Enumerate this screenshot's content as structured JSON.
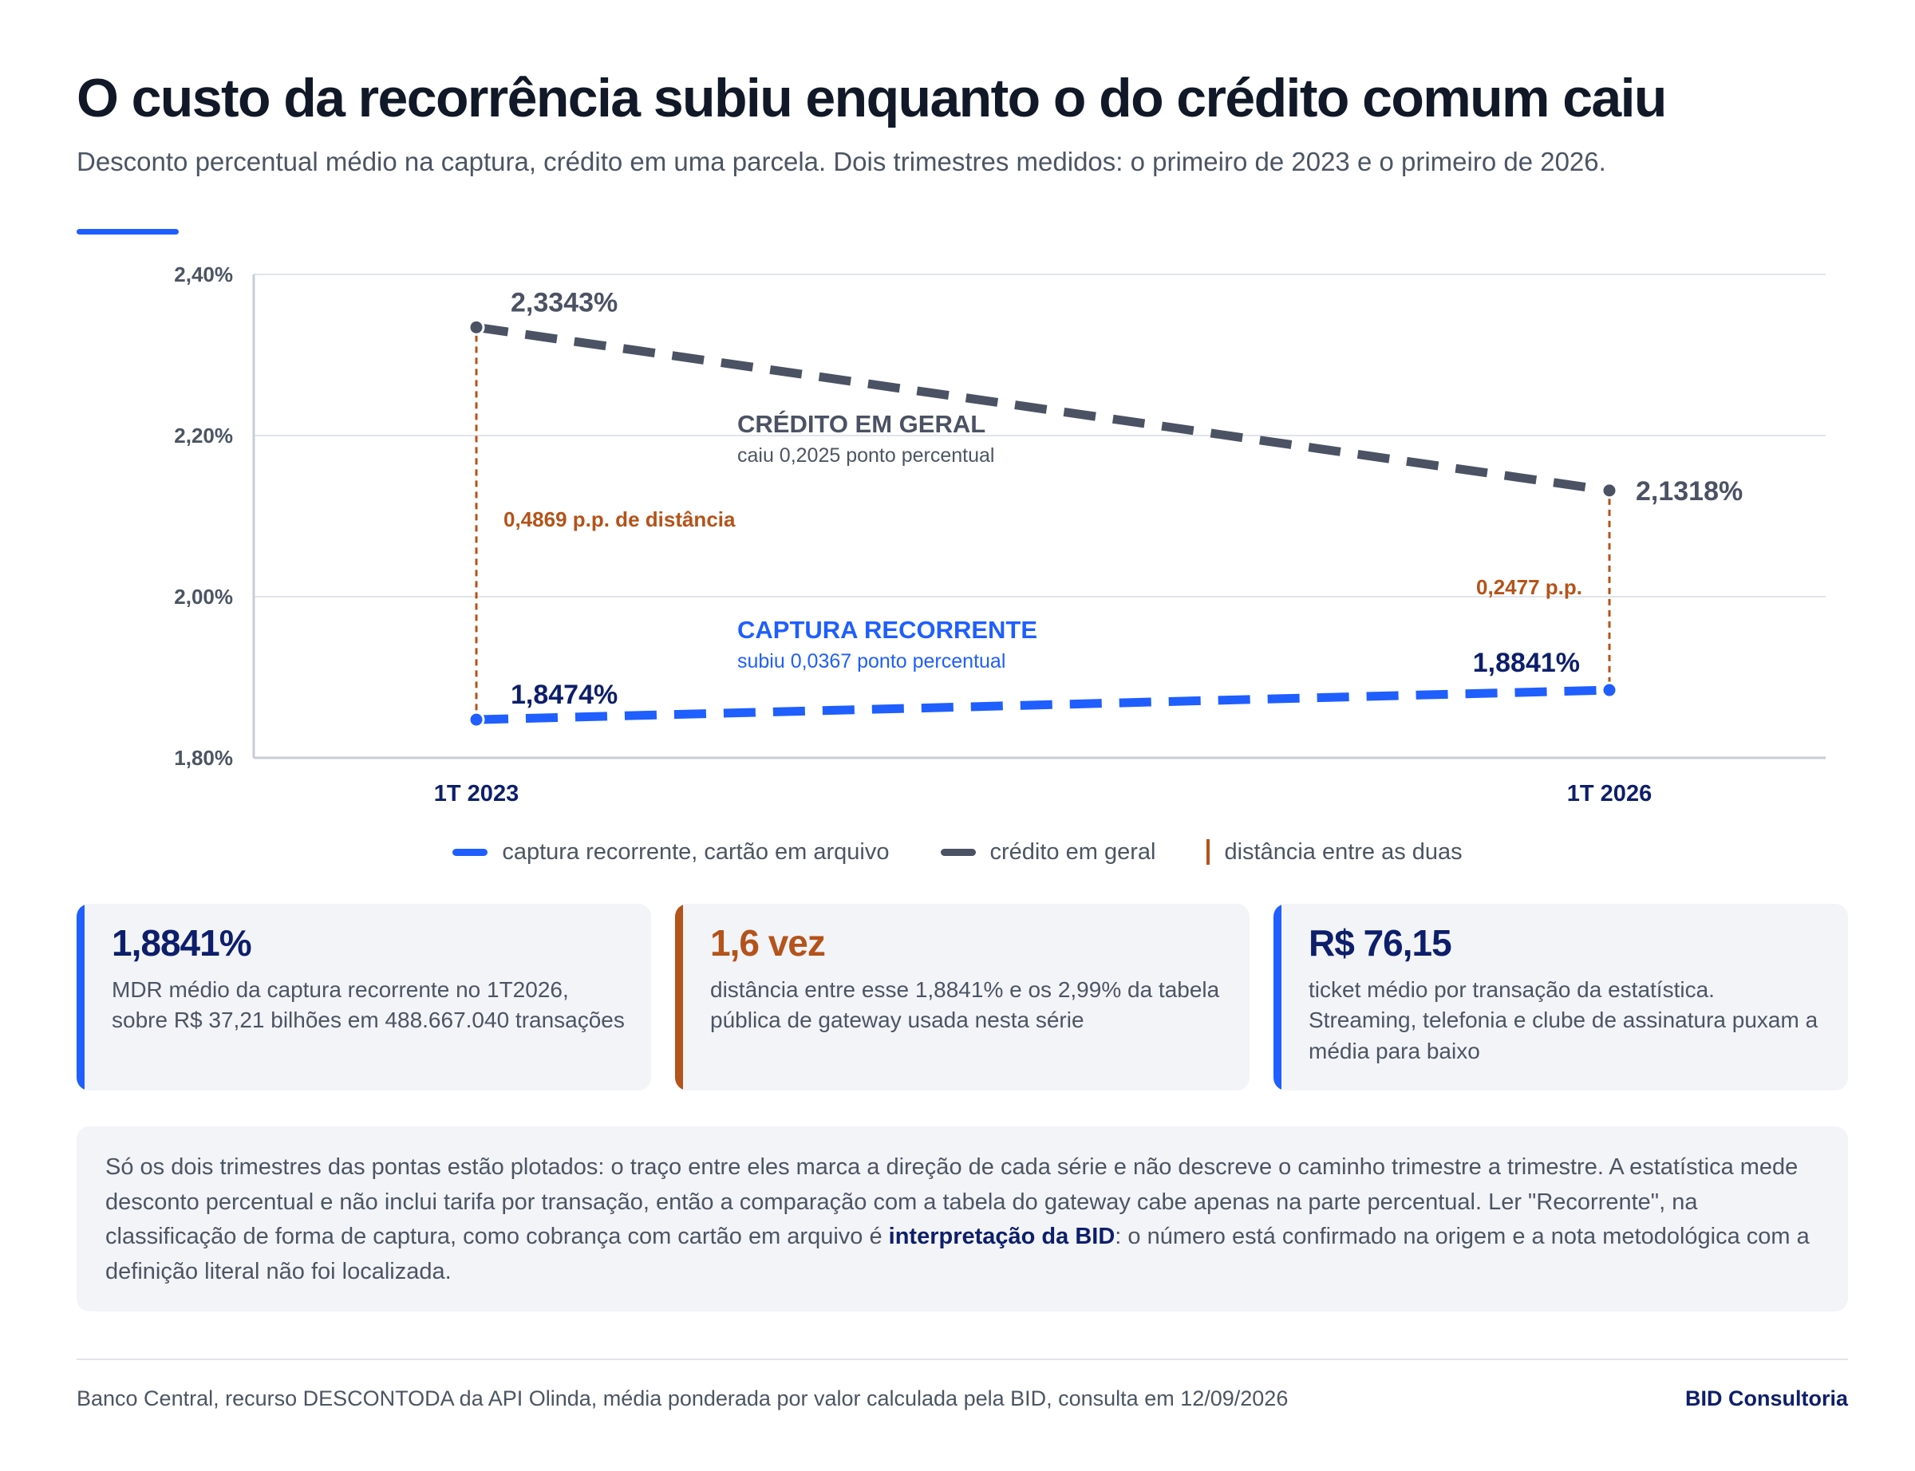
{
  "header": {
    "title": "O custo da recorrência subiu enquanto o do crédito comum caiu",
    "subtitle": "Desconto percentual médio na captura, crédito em uma parcela. Dois trimestres medidos: o primeiro de 2023 e o primeiro de 2026."
  },
  "colors": {
    "accent": "#1f5eff",
    "recurring": "#1f5eff",
    "credit": "#4b5264",
    "gap": "#b4531a",
    "navy": "#0d1f6b"
  },
  "chart_data": {
    "type": "line",
    "categories": [
      "1T 2023",
      "1T 2026"
    ],
    "ylim": [
      1.8,
      2.4
    ],
    "yticks": [
      {
        "value": 1.8,
        "label": "1,80%"
      },
      {
        "value": 2.0,
        "label": "2,00%"
      },
      {
        "value": 2.2,
        "label": "2,20%"
      },
      {
        "value": 2.4,
        "label": "2,40%"
      }
    ],
    "grid": true,
    "legend_position": "bottom",
    "series": [
      {
        "key": "credit",
        "values": [
          2.3343,
          2.1318
        ],
        "labels": [
          "2,3343%",
          "2,1318%"
        ],
        "annotation_title": "CRÉDITO EM GERAL",
        "annotation_sub": "caiu 0,2025 ponto percentual",
        "style": "dashed",
        "color": "#4b5264"
      },
      {
        "key": "recurring",
        "values": [
          1.8474,
          1.8841
        ],
        "labels": [
          "1,8474%",
          "1,8841%"
        ],
        "annotation_title": "CAPTURA RECORRENTE",
        "annotation_sub": "subiu 0,0367 ponto percentual",
        "style": "dashed",
        "color": "#1f5eff"
      }
    ],
    "gaps": [
      {
        "category": "1T 2023",
        "value": 0.4869,
        "label": "0,4869 p.p. de distância"
      },
      {
        "category": "1T 2026",
        "value": 0.2477,
        "label": "0,2477 p.p."
      }
    ]
  },
  "legend": {
    "recurring": "captura recorrente, cartão em arquivo",
    "credit": "crédito em geral",
    "gap": "distância entre as duas"
  },
  "cards": [
    {
      "value": "1,8841%",
      "text": "MDR médio da captura recorrente no 1T2026, sobre R$ 37,21 bilhões em 488.667.040 transações",
      "color": "#1f5eff",
      "value_color": "#0d1f6b"
    },
    {
      "value": "1,6 vez",
      "text": "distância entre esse 1,8841% e os 2,99% da tabela pública de gateway usada nesta série",
      "color": "#b4531a",
      "value_color": "#b4531a"
    },
    {
      "value": "R$ 76,15",
      "text": "ticket médio por transação da estatística. Streaming, telefonia e clube de assinatura puxam a média para baixo",
      "color": "#1f5eff",
      "value_color": "#0d1f6b"
    }
  ],
  "note": {
    "part1": "Só os dois trimestres das pontas estão plotados: o traço entre eles marca a direção de cada série e não descreve o caminho trimestre a trimestre. A estatística mede desconto percentual e não inclui tarifa por transação, então a comparação com a tabela do gateway cabe apenas na parte percentual. Ler \"Recorrente\", na classificação de forma de captura, como cobrança com cartão em arquivo é ",
    "emphasis": "interpretação da BID",
    "part2": ": o número está confirmado na origem e a nota metodológica com a definição literal não foi localizada."
  },
  "footer": {
    "source": "Banco Central, recurso DESCONTODA da API Olinda, média ponderada por valor calculada pela BID, consulta em 12/09/2026",
    "brand": "BID Consultoria"
  }
}
